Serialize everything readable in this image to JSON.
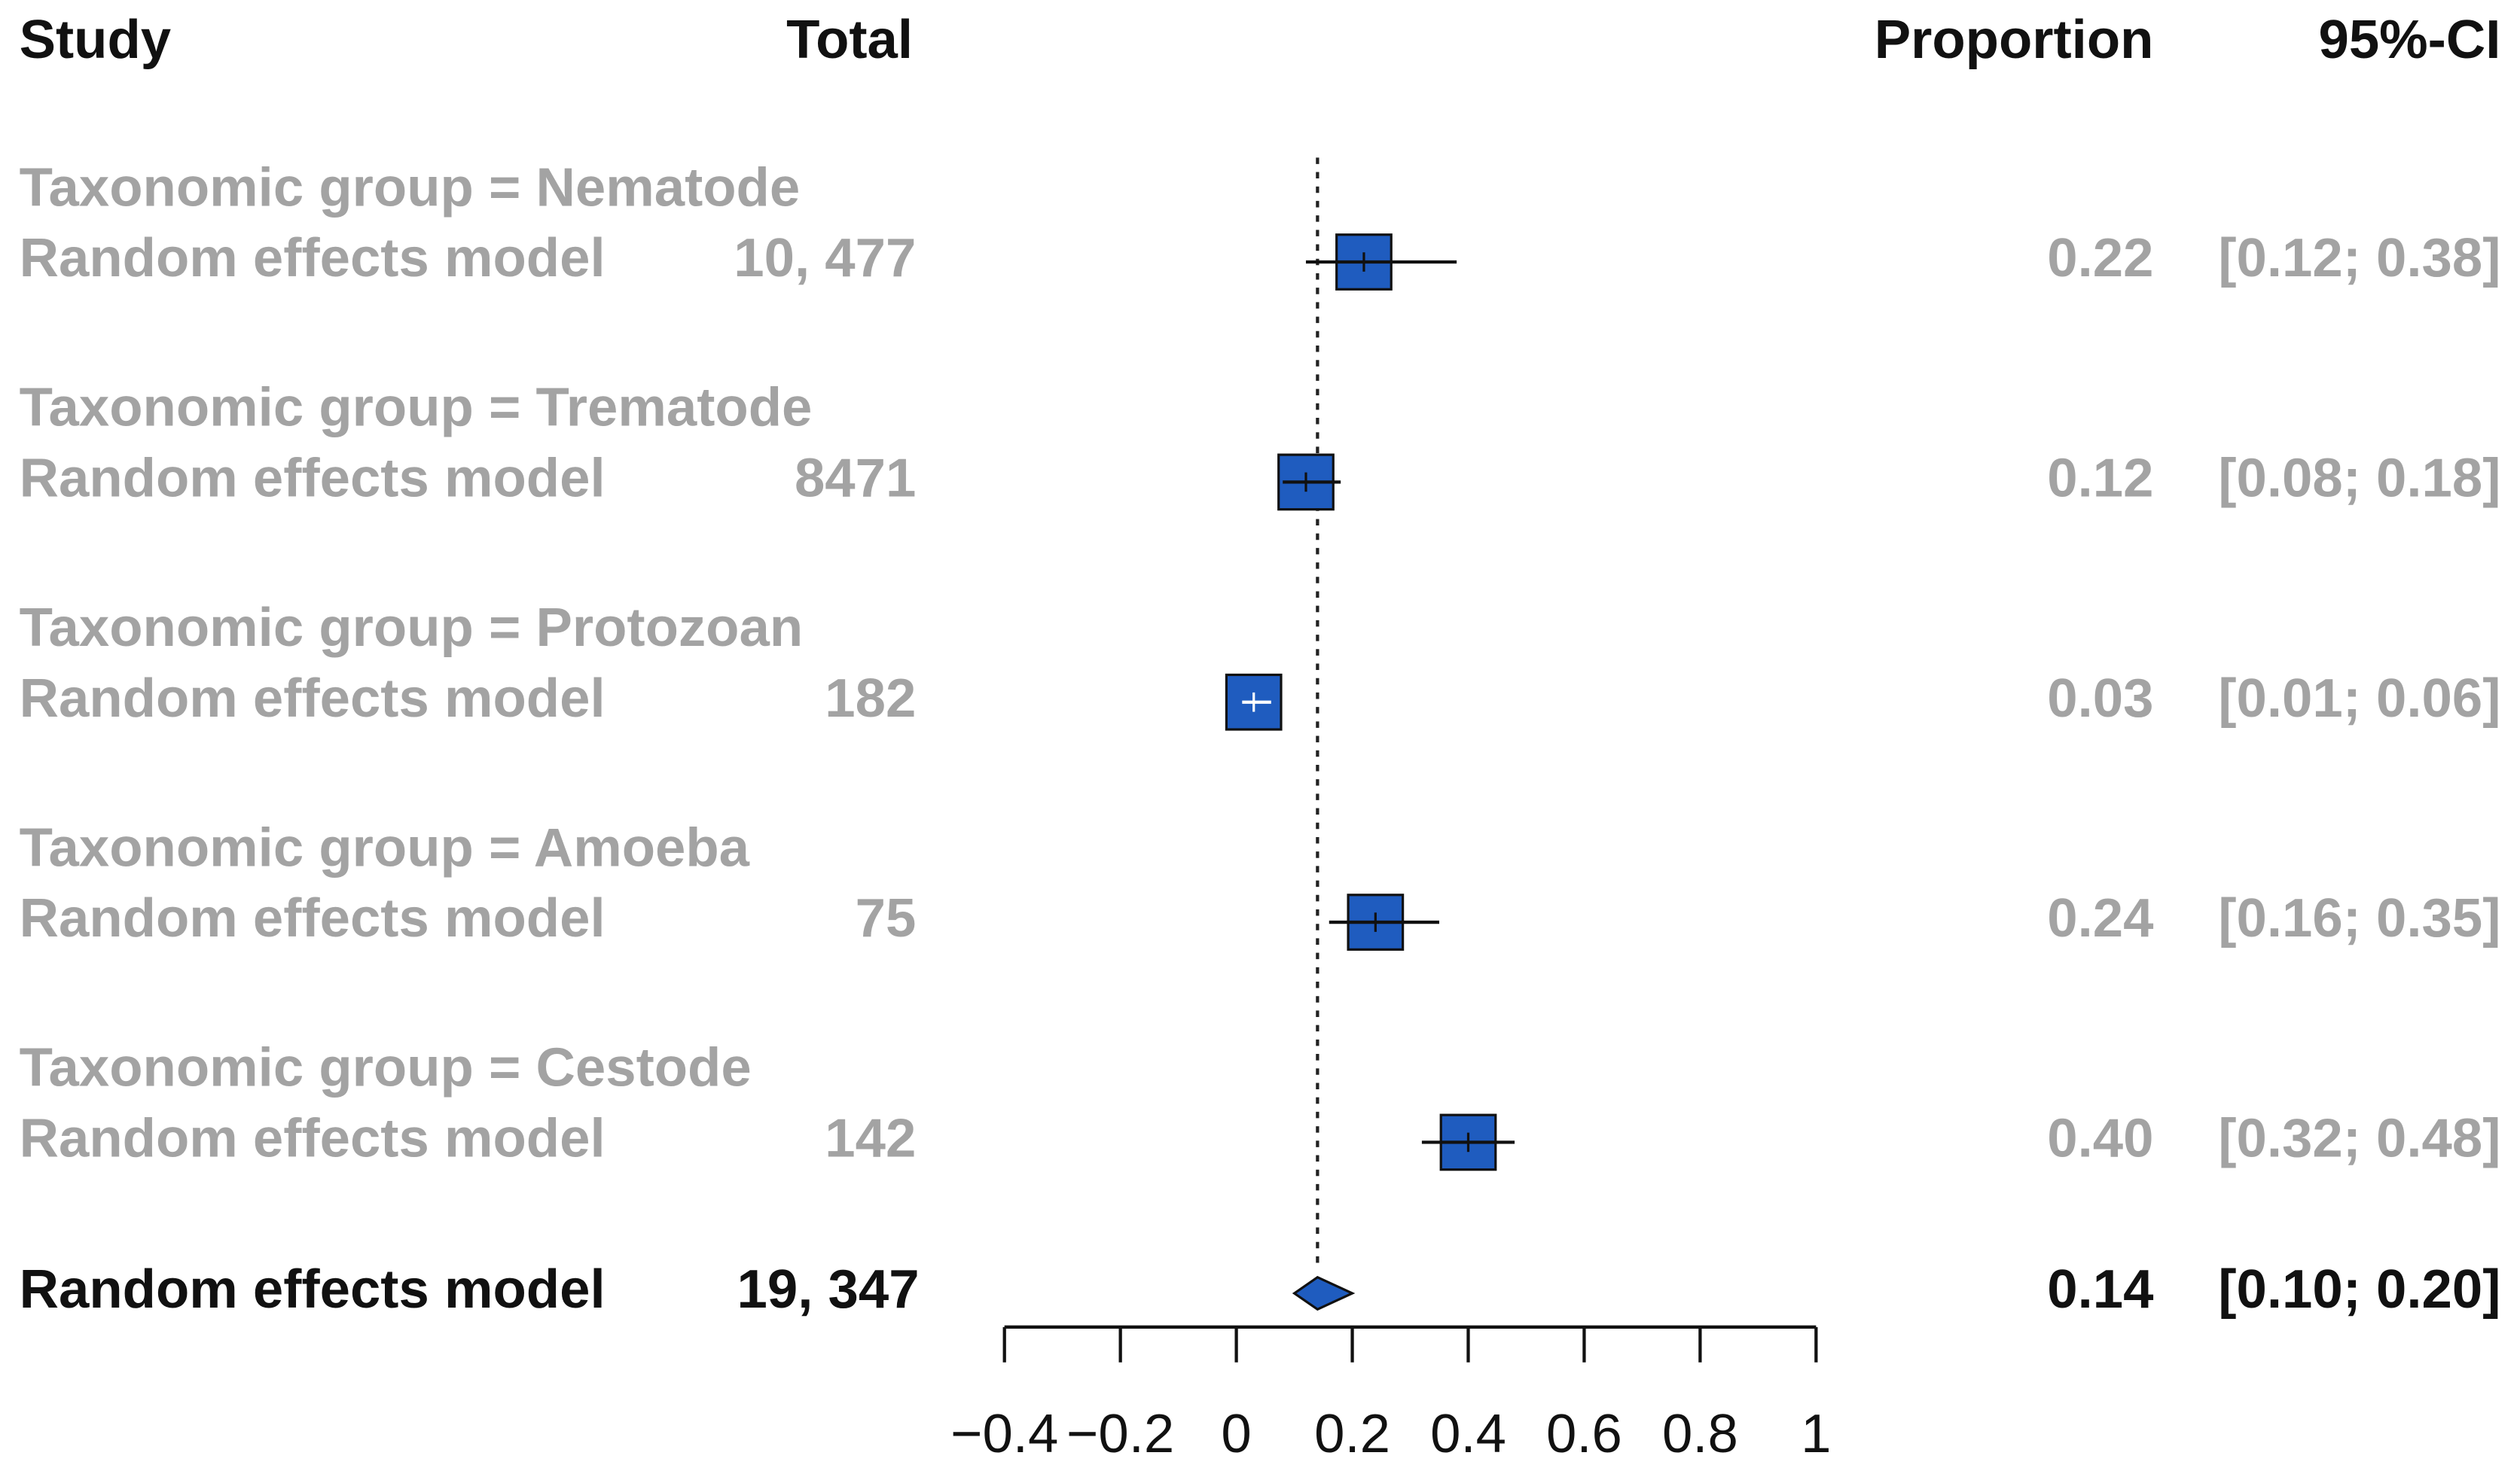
{
  "chart_data": {
    "type": "forest",
    "headers": {
      "study": "Study",
      "total": "Total",
      "proportion": "Proportion",
      "ci": "95%-CI"
    },
    "groups": [
      {
        "label": "Taxonomic group = Nematode",
        "model": "Random effects model",
        "total": "10, 477",
        "value": 0.22,
        "value_label": "0.22",
        "lower": 0.12,
        "upper": 0.38,
        "ci_label": "[0.12; 0.38]"
      },
      {
        "label": "Taxonomic group = Trematode",
        "model": "Random effects model",
        "total": "8471",
        "value": 0.12,
        "value_label": "0.12",
        "lower": 0.08,
        "upper": 0.18,
        "ci_label": "[0.08; 0.18]"
      },
      {
        "label": "Taxonomic group = Protozoan",
        "model": "Random effects model",
        "total": "182",
        "value": 0.03,
        "value_label": "0.03",
        "lower": 0.01,
        "upper": 0.06,
        "ci_label": "[0.01; 0.06]"
      },
      {
        "label": "Taxonomic group = Amoeba",
        "model": "Random effects model",
        "total": "75",
        "value": 0.24,
        "value_label": "0.24",
        "lower": 0.16,
        "upper": 0.35,
        "ci_label": "[0.16; 0.35]"
      },
      {
        "label": "Taxonomic group = Cestode",
        "model": "Random effects model",
        "total": "142",
        "value": 0.4,
        "value_label": "0.40",
        "lower": 0.32,
        "upper": 0.48,
        "ci_label": "[0.32; 0.48]"
      }
    ],
    "overall": {
      "model": "Random effects model",
      "total": "19, 347",
      "value": 0.14,
      "value_label": "0.14",
      "lower": 0.1,
      "upper": 0.2,
      "ci_label": "[0.10; 0.20]"
    },
    "xlim": [
      -0.4,
      1
    ],
    "xticks": [
      {
        "value": -0.4,
        "label": "−0.4"
      },
      {
        "value": -0.2,
        "label": "−0.2"
      },
      0,
      0.2,
      0.4,
      0.6,
      0.8,
      1
    ],
    "color": "#1f5cbf",
    "reference_line": "dashed"
  }
}
